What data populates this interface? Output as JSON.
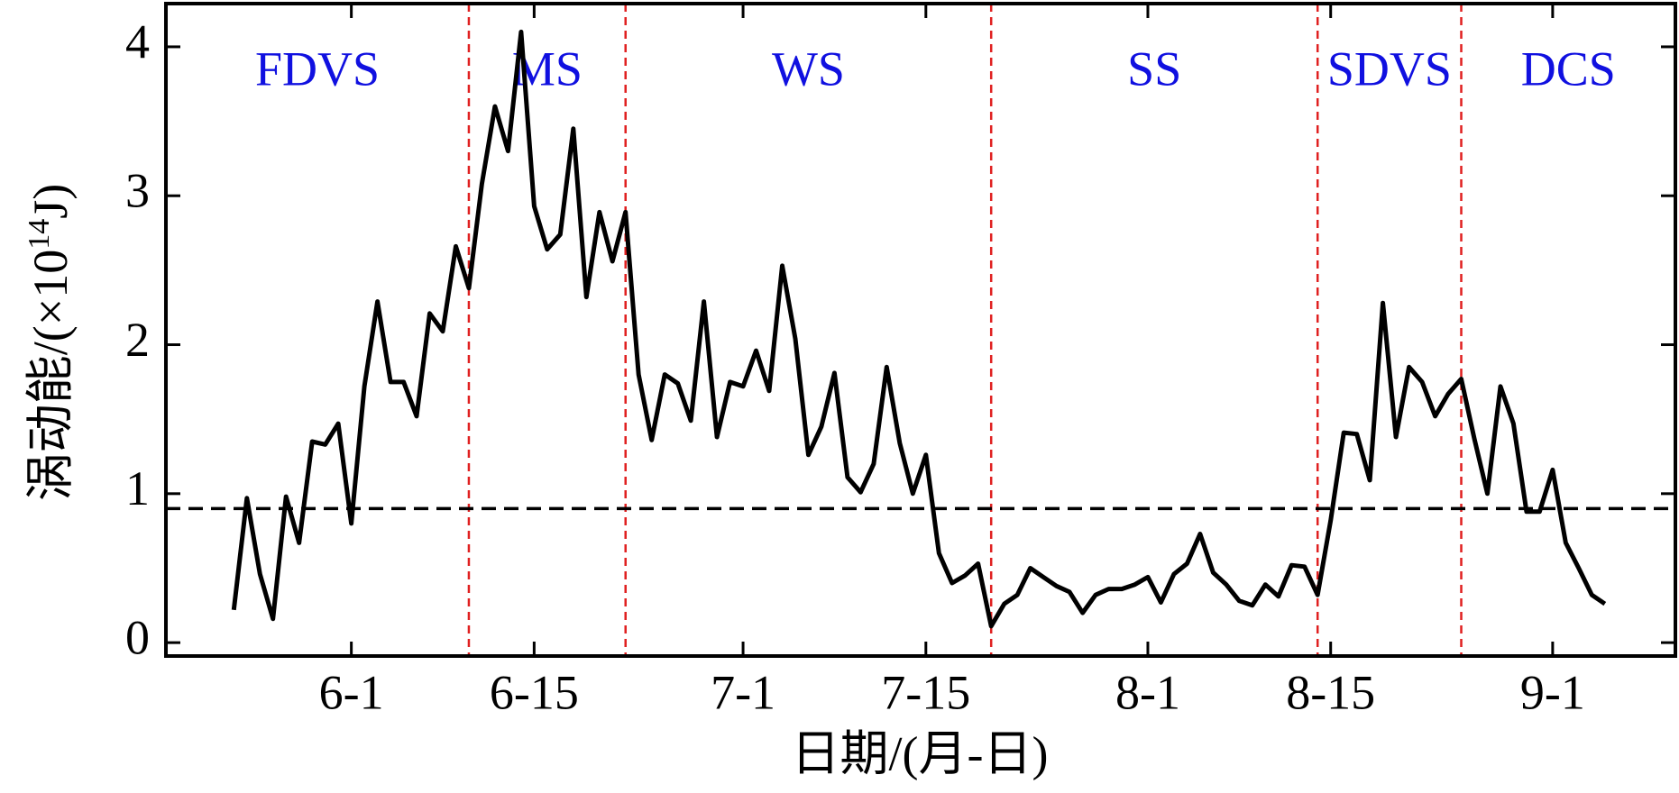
{
  "chart_data": {
    "type": "line",
    "x_label": "日期/(月-日)",
    "y_label": {
      "prefix": "涡动能/(×10",
      "sup": "14",
      "suffix": "J)"
    },
    "x": [
      "5-23",
      "5-24",
      "5-25",
      "5-26",
      "5-27",
      "5-28",
      "5-29",
      "5-30",
      "5-31",
      "6-1",
      "6-2",
      "6-3",
      "6-4",
      "6-5",
      "6-6",
      "6-7",
      "6-8",
      "6-9",
      "6-10",
      "6-11",
      "6-12",
      "6-13",
      "6-14",
      "6-15",
      "6-16",
      "6-17",
      "6-18",
      "6-19",
      "6-20",
      "6-21",
      "6-22",
      "6-23",
      "6-24",
      "6-25",
      "6-26",
      "6-27",
      "6-28",
      "6-29",
      "6-30",
      "7-1",
      "7-2",
      "7-3",
      "7-4",
      "7-5",
      "7-6",
      "7-7",
      "7-8",
      "7-9",
      "7-10",
      "7-11",
      "7-12",
      "7-13",
      "7-14",
      "7-15",
      "7-16",
      "7-17",
      "7-18",
      "7-19",
      "7-20",
      "7-21",
      "7-22",
      "7-23",
      "7-24",
      "7-25",
      "7-26",
      "7-27",
      "7-28",
      "7-29",
      "7-30",
      "7-31",
      "8-1",
      "8-2",
      "8-3",
      "8-4",
      "8-5",
      "8-6",
      "8-7",
      "8-8",
      "8-9",
      "8-10",
      "8-11",
      "8-12",
      "8-13",
      "8-14",
      "8-15",
      "8-16",
      "8-17",
      "8-18",
      "8-19",
      "8-20",
      "8-21",
      "8-22",
      "8-23",
      "8-24",
      "8-25",
      "8-26",
      "8-27",
      "8-28",
      "8-29",
      "8-30",
      "8-31",
      "9-1",
      "9-2",
      "9-3",
      "9-4",
      "9-5"
    ],
    "series": [
      {
        "color": "#000000",
        "values": [
          0.22,
          0.97,
          0.46,
          0.16,
          0.98,
          0.67,
          1.35,
          1.33,
          1.47,
          0.8,
          1.72,
          2.29,
          1.75,
          1.75,
          1.52,
          2.21,
          2.09,
          2.66,
          2.38,
          3.08,
          3.6,
          3.3,
          4.1,
          2.93,
          2.64,
          2.74,
          3.45,
          2.32,
          2.89,
          2.56,
          2.89,
          1.8,
          1.36,
          1.8,
          1.74,
          1.49,
          2.29,
          1.38,
          1.75,
          1.72,
          1.96,
          1.69,
          2.53,
          2.04,
          1.26,
          1.45,
          1.81,
          1.11,
          1.01,
          1.2,
          1.85,
          1.34,
          1.0,
          1.26,
          0.6,
          0.4,
          0.45,
          0.53,
          0.11,
          0.26,
          0.32,
          0.5,
          0.44,
          0.38,
          0.34,
          0.2,
          0.32,
          0.36,
          0.36,
          0.39,
          0.44,
          0.27,
          0.46,
          0.53,
          0.73,
          0.47,
          0.39,
          0.28,
          0.25,
          0.39,
          0.31,
          0.52,
          0.51,
          0.32,
          0.82,
          1.41,
          1.4,
          1.09,
          2.28,
          1.38,
          1.85,
          1.75,
          1.52,
          1.67,
          1.77,
          1.37,
          1.0,
          1.72,
          1.47,
          0.88,
          0.88,
          1.16,
          0.67,
          0.5,
          0.32,
          0.26
        ]
      }
    ],
    "xticks": [
      "6-1",
      "6-15",
      "7-1",
      "7-15",
      "8-1",
      "8-15",
      "9-1"
    ],
    "ylim": [
      -0.09,
      4.29
    ],
    "yticks": [
      0,
      1,
      2,
      3,
      4
    ],
    "threshold": 0.9,
    "threshold_color": "#000000",
    "boundaries": [
      "6-10",
      "6-22",
      "7-20",
      "8-14",
      "8-25"
    ],
    "boundary_color": "#e02020",
    "phase_labels": [
      "FDVS",
      "MS",
      "WS",
      "SS",
      "SDVS",
      "DCS"
    ],
    "phase_color": "#1010e0"
  }
}
